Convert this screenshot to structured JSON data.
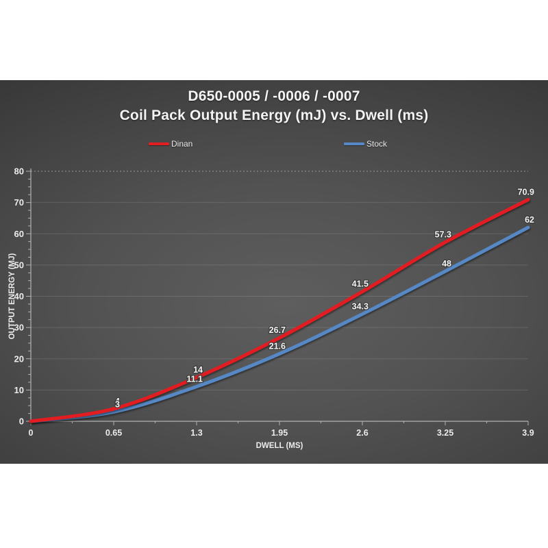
{
  "title": {
    "line1": "D650-0005 / -0006 / -0007",
    "line2": "Coil Pack Output Energy (mJ) vs. Dwell (ms)"
  },
  "legend": [
    {
      "label": "Dinan",
      "color": "#e31e22"
    },
    {
      "label": "Stock",
      "color": "#5688c6"
    }
  ],
  "colors": {
    "background_center": "#5e5e5e",
    "background_edge": "#262626",
    "axis": "#b3b3b3",
    "gridline": "rgba(255,255,255,0.13)",
    "tick_text": "#ececec",
    "data_label_fill": "#f2f2f2",
    "data_label_outline": "#3c3c3c",
    "page_margin": "#ffffff"
  },
  "chart_data": {
    "type": "line",
    "title": "D650-0005 / -0006 / -0007 — Coil Pack Output Energy (mJ) vs. Dwell (ms)",
    "x": [
      0,
      0.65,
      1.3,
      1.95,
      2.6,
      3.25,
      3.9
    ],
    "xticks": [
      "0",
      "0.65",
      "1.3",
      "1.95",
      "2.6",
      "3.25",
      "3.9"
    ],
    "series": [
      {
        "name": "Dinan",
        "color": "#e31e22",
        "values": [
          0,
          4,
          14,
          26.7,
          41.5,
          57.3,
          70.9
        ],
        "labels": [
          "",
          "4",
          "14",
          "26.7",
          "41.5",
          "57.3",
          "70.9"
        ]
      },
      {
        "name": "Stock",
        "color": "#5688c6",
        "values": [
          0,
          3,
          11.1,
          21.6,
          34.3,
          48,
          62
        ],
        "labels": [
          "",
          "3",
          "11.1",
          "21.6",
          "34.3",
          "48",
          "62"
        ]
      }
    ],
    "xlabel": "DWELL (MS)",
    "ylabel": "OUTPUT ENERGY (MJ)",
    "xlim": [
      0,
      3.9
    ],
    "ylim": [
      0,
      80
    ],
    "ytick_step": 10,
    "ytick_minor_step": 2.5,
    "xtick_minor_step": 0.325,
    "grid": "horizontal",
    "top_border_style": "dashed",
    "legend_position": "top"
  }
}
